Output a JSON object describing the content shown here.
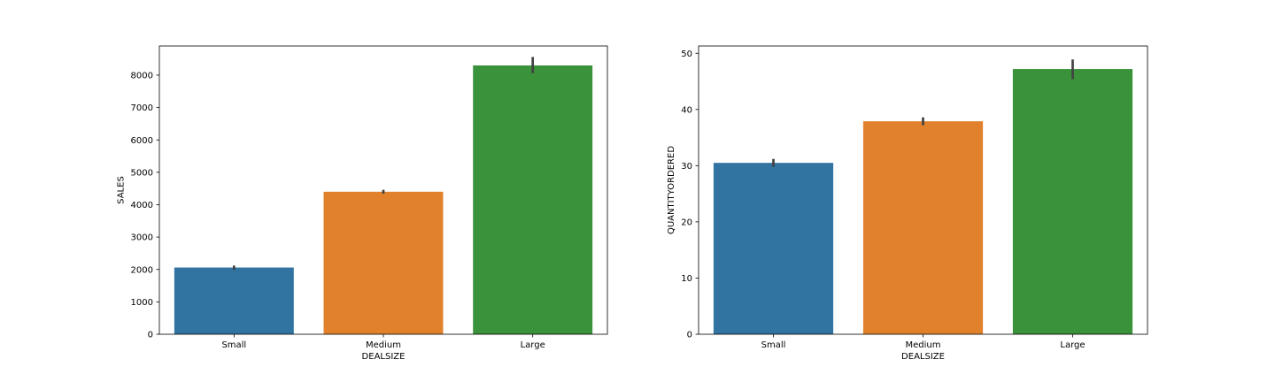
{
  "chart_data": [
    {
      "type": "bar",
      "categories": [
        "Small",
        "Medium",
        "Large"
      ],
      "values": [
        2060,
        4400,
        8300
      ],
      "error_bars": [
        [
          1990,
          2120
        ],
        [
          4340,
          4460
        ],
        [
          8060,
          8560
        ]
      ],
      "colors": [
        "#3274a1",
        "#e1812c",
        "#3a923a"
      ],
      "error_color": "#424242",
      "xlabel": "DEALSIZE",
      "ylabel": "SALES",
      "ylim": [
        0,
        8900
      ],
      "yticks": [
        0,
        1000,
        2000,
        3000,
        4000,
        5000,
        6000,
        7000,
        8000
      ],
      "ytick_labels": [
        "0",
        "1000",
        "2000",
        "3000",
        "4000",
        "5000",
        "6000",
        "7000",
        "8000"
      ],
      "grid": false,
      "legend": "none"
    },
    {
      "type": "bar",
      "categories": [
        "Small",
        "Medium",
        "Large"
      ],
      "values": [
        30.5,
        37.9,
        47.2
      ],
      "error_bars": [
        [
          29.8,
          31.2
        ],
        [
          37.2,
          38.6
        ],
        [
          45.4,
          48.9
        ]
      ],
      "colors": [
        "#3274a1",
        "#e1812c",
        "#3a923a"
      ],
      "error_color": "#424242",
      "xlabel": "DEALSIZE",
      "ylabel": "QUANTITYORDERED",
      "ylim": [
        0,
        51.3
      ],
      "yticks": [
        0,
        10,
        20,
        30,
        40,
        50
      ],
      "ytick_labels": [
        "0",
        "10",
        "20",
        "30",
        "40",
        "50"
      ],
      "grid": false,
      "legend": "none"
    }
  ]
}
